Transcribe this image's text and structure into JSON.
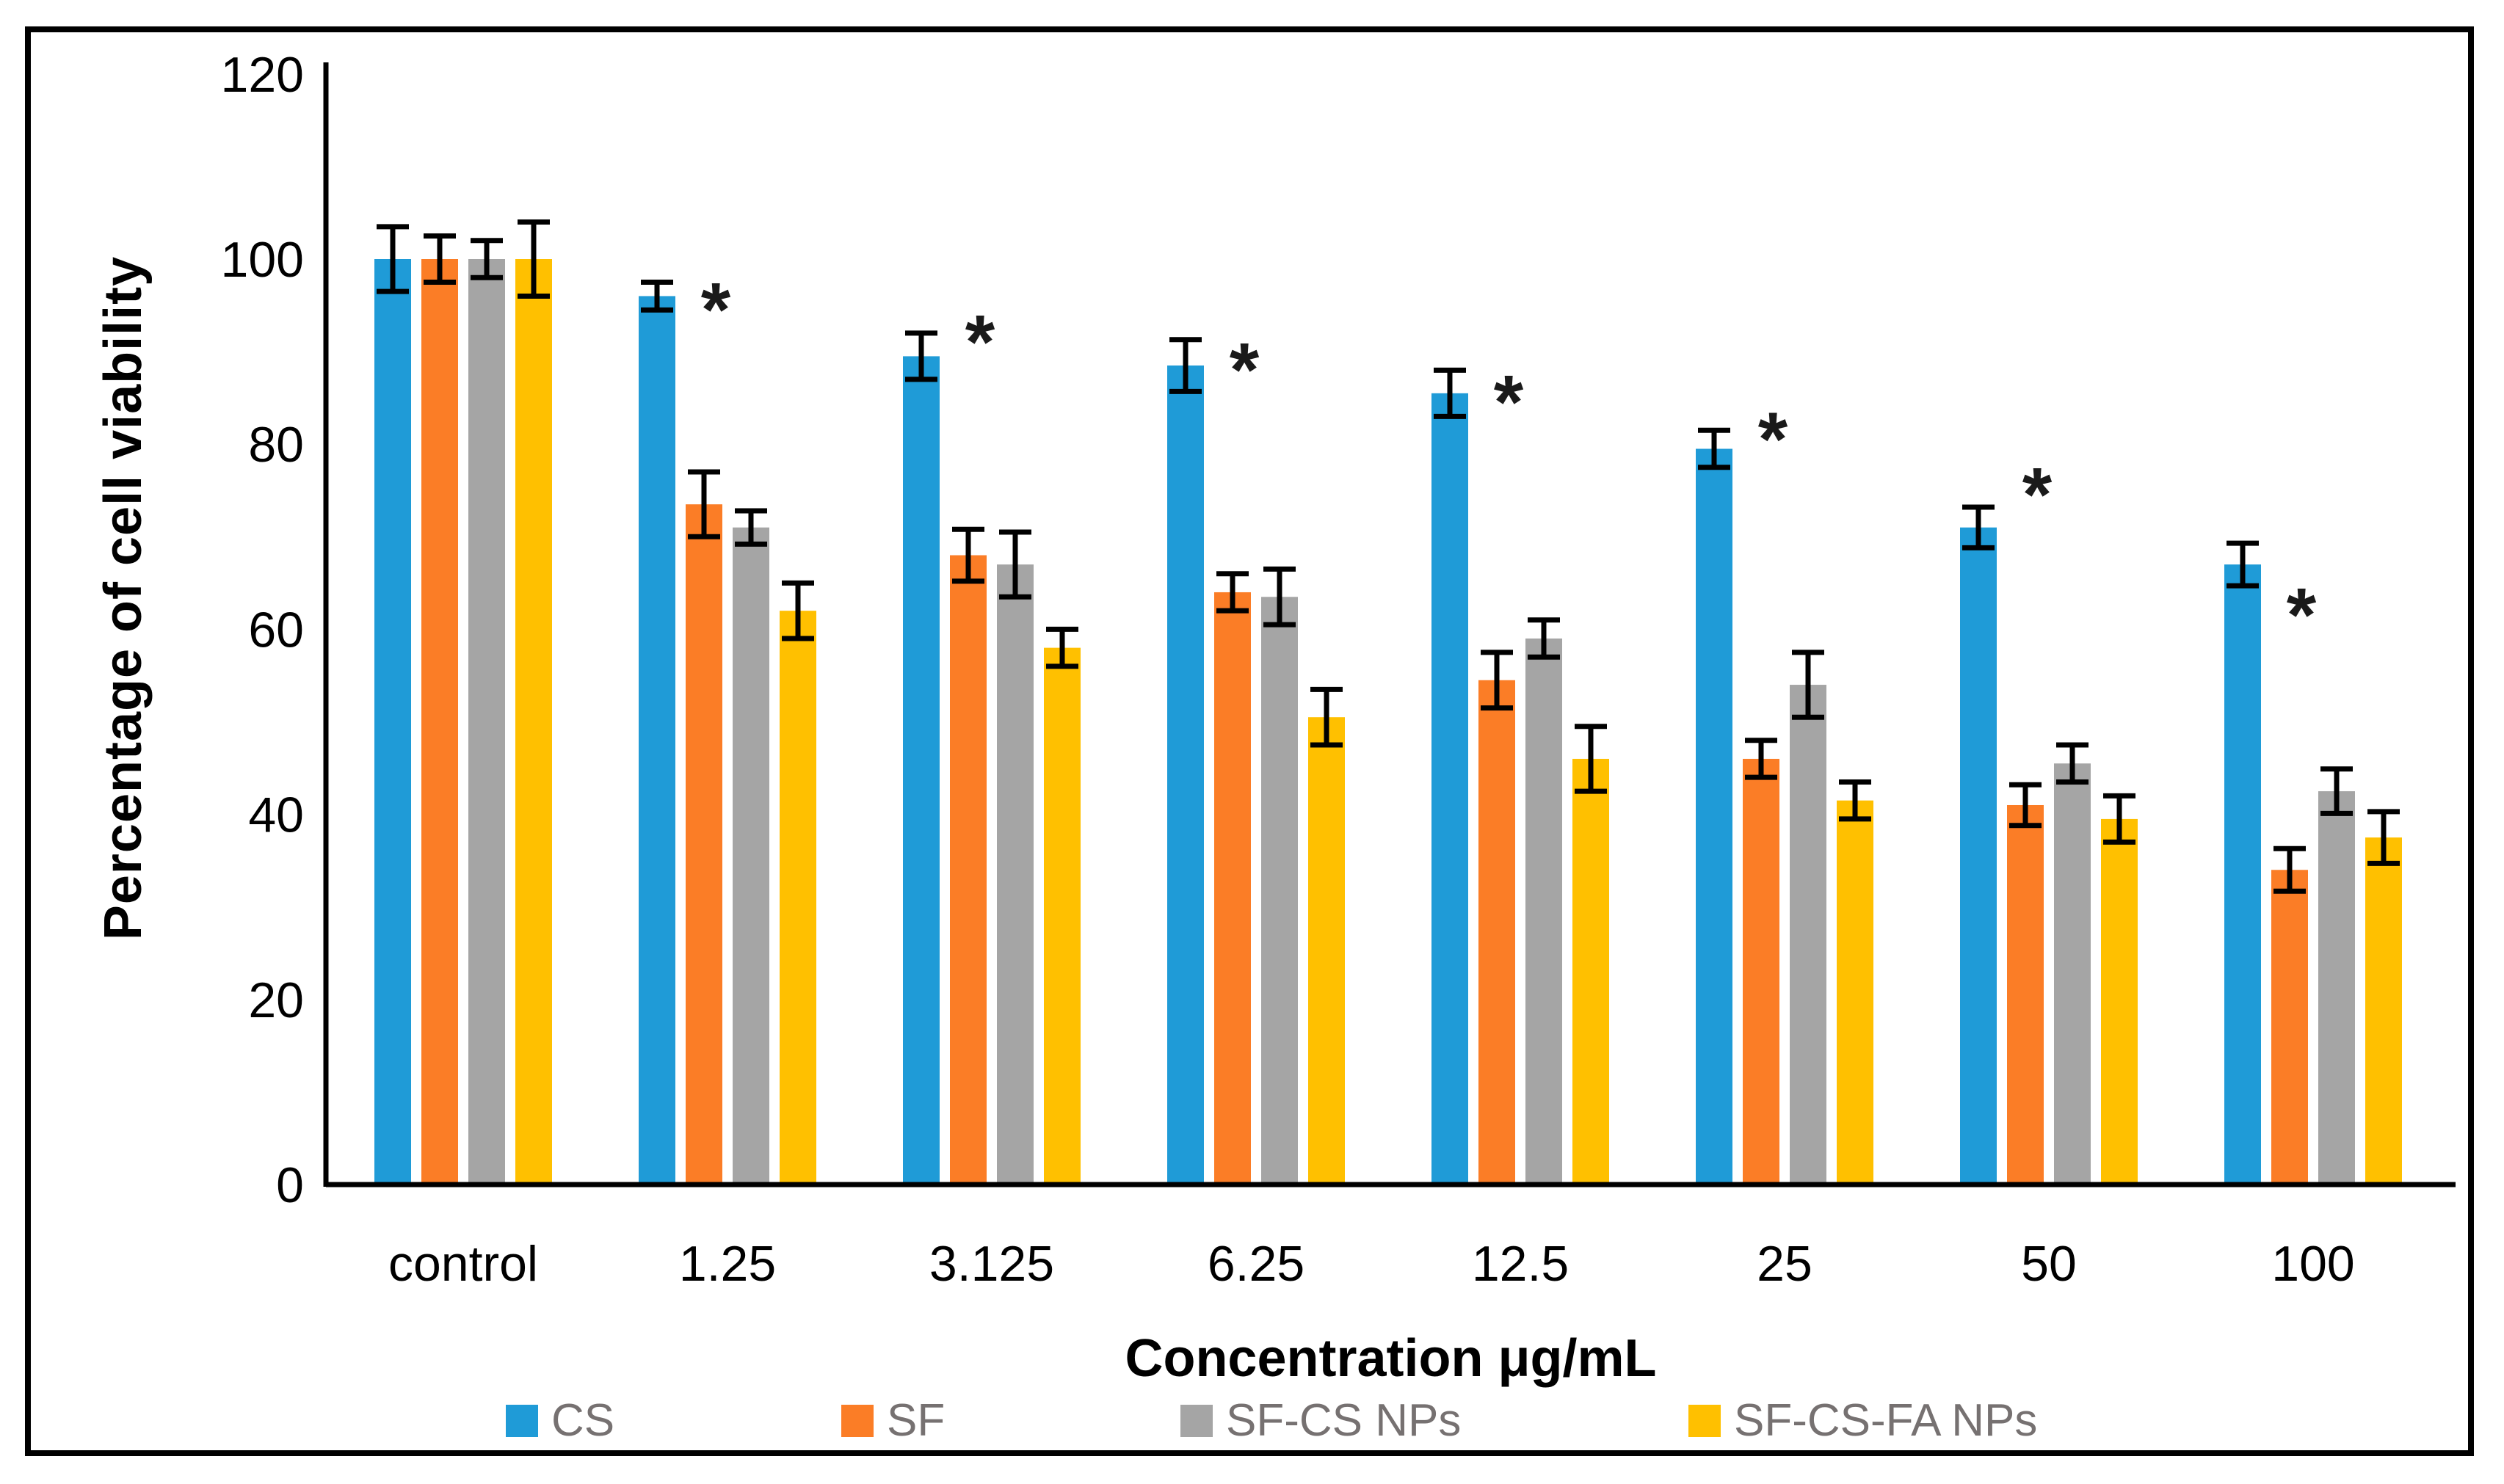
{
  "figure": {
    "background": "#ffffff",
    "border_color": "#000000"
  },
  "chart_data": {
    "type": "bar",
    "title": "",
    "xlabel": "Concentration μg/mL",
    "ylabel": "Percentage of cell viability",
    "ylim": [
      0,
      120
    ],
    "yticks": [
      0,
      20,
      40,
      60,
      80,
      100,
      120
    ],
    "grid": false,
    "legend_position": "bottom",
    "legend_text_color": "#767171",
    "axis_color": "#000000",
    "error_bar_color": "#000000",
    "categories": [
      "control",
      "1.25",
      "3.125",
      "6.25",
      "12.5",
      "25",
      "50",
      "100"
    ],
    "series": [
      {
        "name": "CS",
        "color": "#1F9BD7",
        "values": [
          100,
          96,
          89.5,
          88.5,
          85.5,
          79.5,
          71,
          67
        ],
        "errors": [
          3.5,
          1.5,
          2.5,
          2.8,
          2.5,
          2,
          2.2,
          2.3
        ]
      },
      {
        "name": "SF",
        "color": "#FB7D26",
        "values": [
          100,
          73.5,
          68,
          64,
          54.5,
          46,
          41,
          34
        ],
        "errors": [
          2.5,
          3.5,
          2.8,
          2,
          3,
          2,
          2.2,
          2.3
        ]
      },
      {
        "name": "SF-CS NPs",
        "color": "#A5A5A5",
        "values": [
          100,
          71,
          67,
          63.5,
          59,
          54,
          45.5,
          42.5
        ],
        "errors": [
          2,
          1.8,
          3.5,
          3,
          2,
          3.5,
          2,
          2.4
        ]
      },
      {
        "name": "SF-CS-FA NPs",
        "color": "#FFC000",
        "values": [
          100,
          62,
          58,
          50.5,
          46,
          41.5,
          39.5,
          37.5
        ],
        "errors": [
          4,
          3,
          2,
          3,
          3.5,
          2,
          2.5,
          2.8
        ]
      }
    ],
    "annotations": {
      "symbol": "*",
      "color": "#1a1a1a",
      "per_category_value": [
        null,
        96,
        92.5,
        89.5,
        86,
        82,
        76,
        63
      ]
    }
  }
}
